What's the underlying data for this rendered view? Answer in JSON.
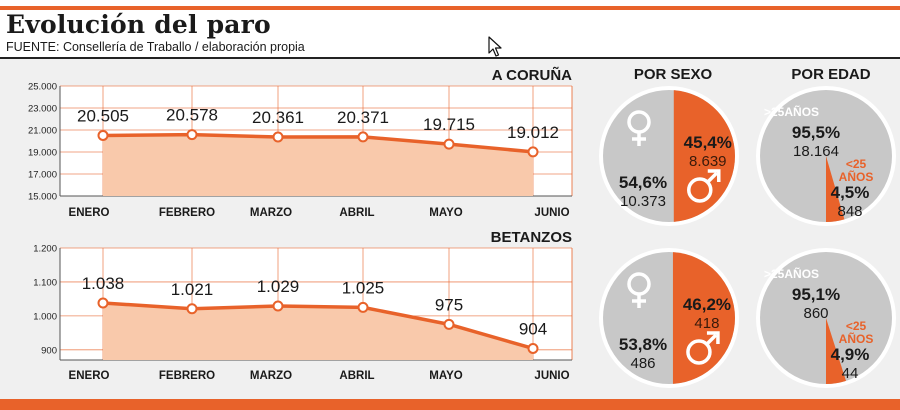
{
  "header": {
    "title": "Evolución del paro",
    "source": "FUENTE: Consellería de Traballo / elaboración propia"
  },
  "columns": {
    "sex_title": "POR SEXO",
    "age_title": "POR EDAD"
  },
  "colors": {
    "accent": "#e8622a",
    "area_fill": "#f9c9ab",
    "grid": "#e8622a",
    "grey_slice": "#c8c8c8",
    "panel": "#f0f0f0"
  },
  "chart_data": [
    {
      "type": "area",
      "title": "A CORUÑA",
      "categories": [
        "ENERO",
        "FEBRERO",
        "MARZO",
        "ABRIL",
        "MAYO",
        "JUNIO"
      ],
      "values": [
        20505,
        20578,
        20361,
        20371,
        19715,
        19012
      ],
      "value_labels": [
        "20.505",
        "20.578",
        "20.361",
        "20.371",
        "19.715",
        "19.012"
      ],
      "yticks": [
        15000,
        17000,
        19000,
        21000,
        23000,
        25000
      ],
      "ytick_labels": [
        "15.000",
        "17.000",
        "19.000",
        "21.000",
        "23.000",
        "25.000"
      ],
      "ylim": [
        15000,
        25000
      ],
      "grid": true
    },
    {
      "type": "area",
      "title": "BETANZOS",
      "categories": [
        "ENERO",
        "FEBRERO",
        "MARZO",
        "ABRIL",
        "MAYO",
        "JUNIO"
      ],
      "values": [
        1038,
        1021,
        1029,
        1025,
        975,
        904
      ],
      "value_labels": [
        "1.038",
        "1.021",
        "1.029",
        "1.025",
        "975",
        "904"
      ],
      "yticks": [
        900,
        1000,
        1100,
        1200
      ],
      "ytick_labels": [
        "900",
        "1.000",
        "1.100",
        "1.200"
      ],
      "ylim": [
        870,
        1200
      ],
      "grid": true
    },
    {
      "type": "pie",
      "title": "POR SEXO",
      "region": "A CORUÑA",
      "slices": [
        {
          "name": "male",
          "icon": "male-symbol-icon",
          "percent": 45.4,
          "percent_label": "45,4%",
          "count_label": "8.639",
          "color": "#e8622a"
        },
        {
          "name": "female",
          "icon": "female-symbol-icon",
          "percent": 54.6,
          "percent_label": "54,6%",
          "count_label": "10.373",
          "color": "#c8c8c8"
        }
      ]
    },
    {
      "type": "pie",
      "title": "POR EDAD",
      "region": "A CORUÑA",
      "slices": [
        {
          "name": ">25AÑOS",
          "percent": 95.5,
          "percent_label": "95,5%",
          "count_label": "18.164",
          "color": "#c8c8c8"
        },
        {
          "name": "<25 AÑOS",
          "percent": 4.5,
          "percent_label": "4,5%",
          "count_label": "848",
          "color": "#e8622a"
        }
      ]
    },
    {
      "type": "pie",
      "title": "POR SEXO",
      "region": "BETANZOS",
      "slices": [
        {
          "name": "male",
          "icon": "male-symbol-icon",
          "percent": 46.2,
          "percent_label": "46,2%",
          "count_label": "418",
          "color": "#e8622a"
        },
        {
          "name": "female",
          "icon": "female-symbol-icon",
          "percent": 53.8,
          "percent_label": "53,8%",
          "count_label": "486",
          "color": "#c8c8c8"
        }
      ]
    },
    {
      "type": "pie",
      "title": "POR EDAD",
      "region": "BETANZOS",
      "slices": [
        {
          "name": ">25AÑOS",
          "percent": 95.1,
          "percent_label": "95,1%",
          "count_label": "860",
          "color": "#c8c8c8"
        },
        {
          "name": "<25 AÑOS",
          "percent": 4.9,
          "percent_label": "4,9%",
          "count_label": "44",
          "color": "#e8622a"
        }
      ]
    }
  ]
}
